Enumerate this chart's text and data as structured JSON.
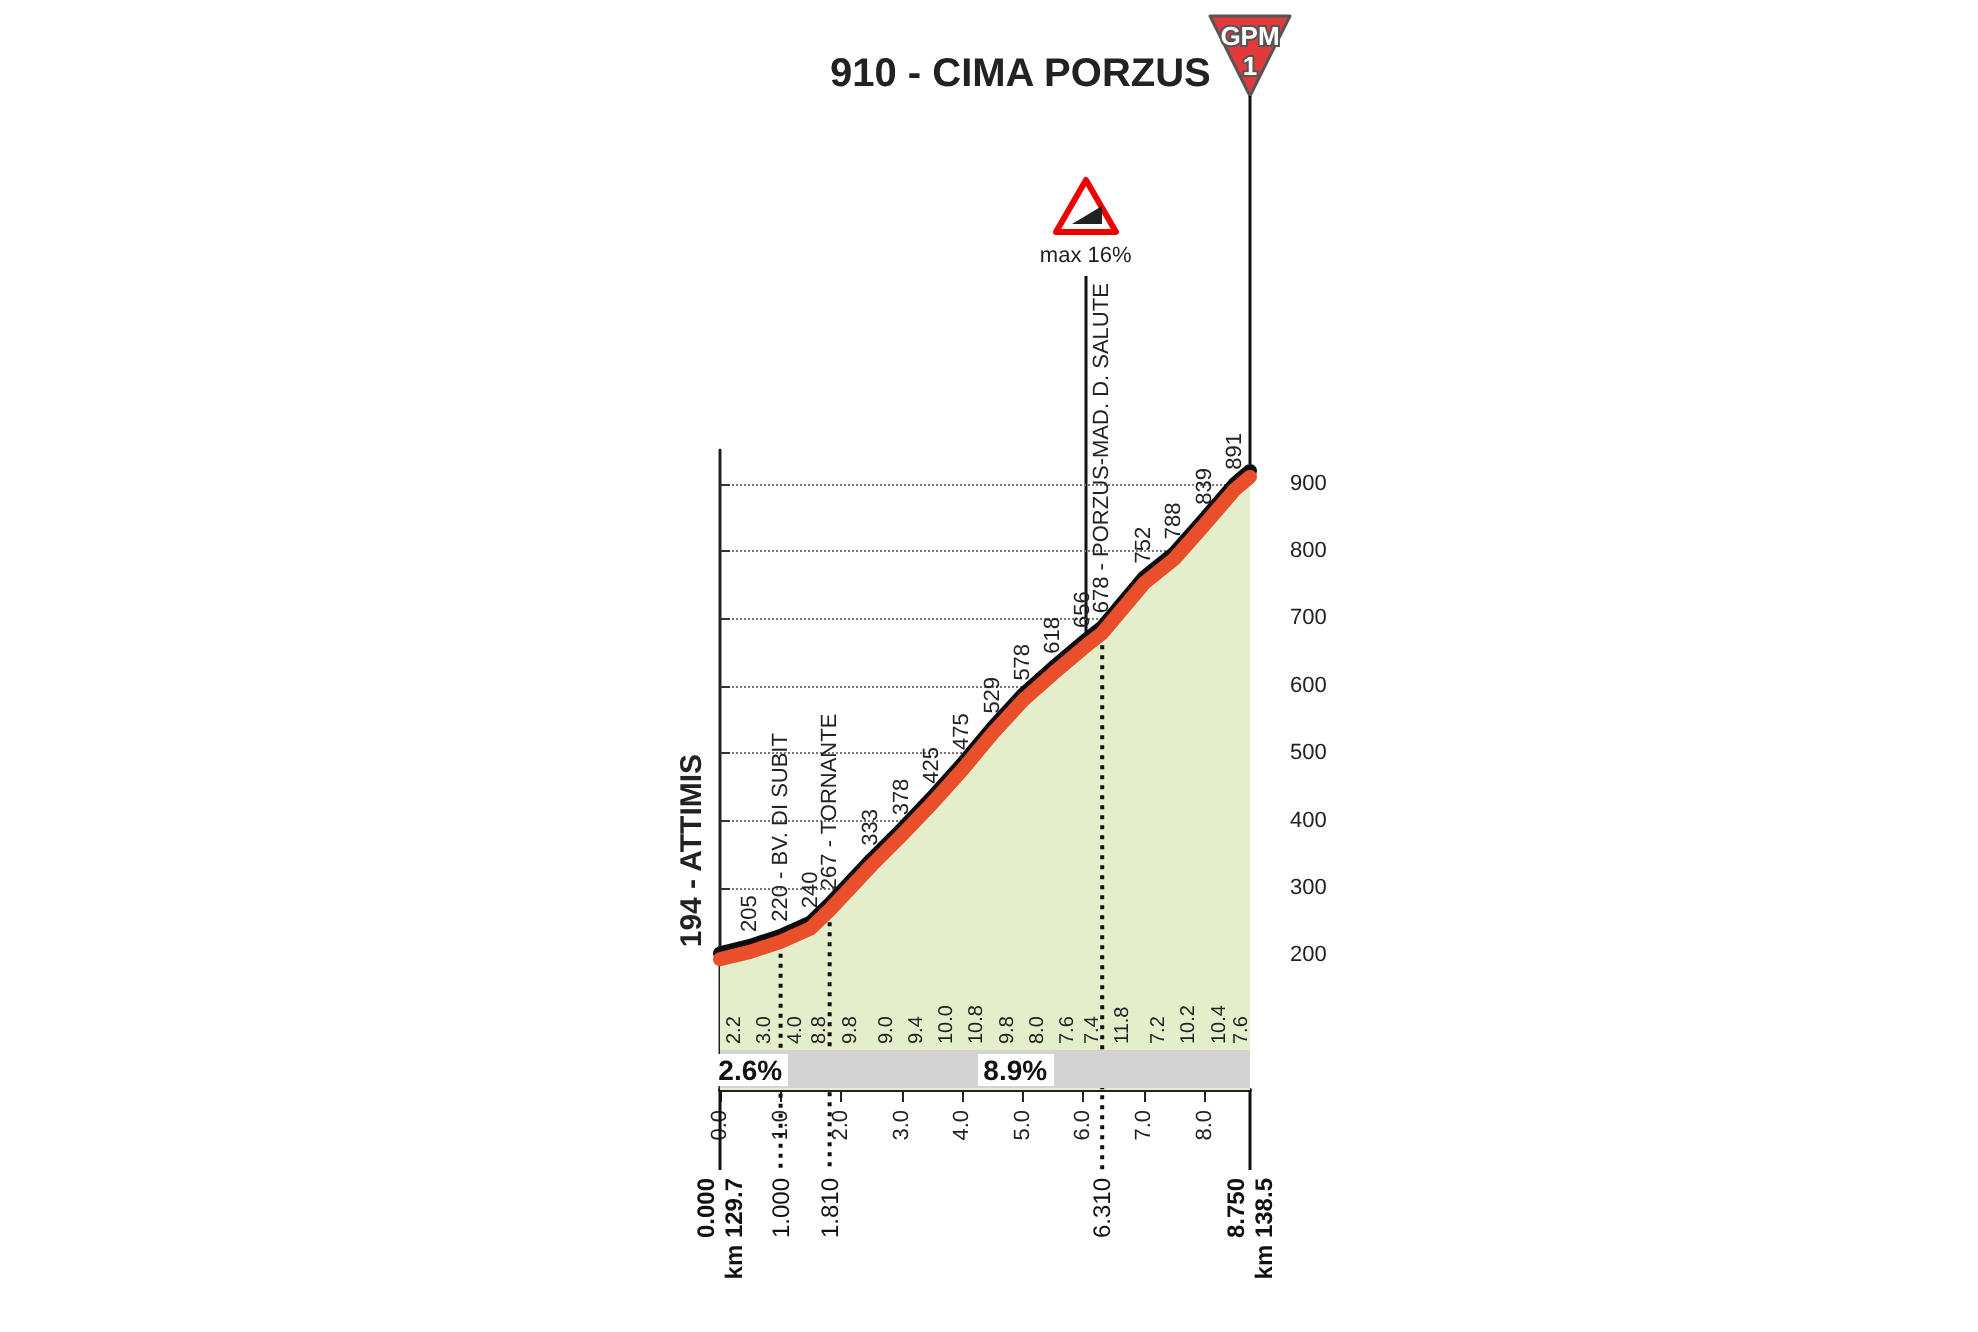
{
  "chart_data": {
    "type": "area",
    "title": "910 - CIMA PORZUS",
    "x": [
      0,
      0.5,
      1,
      1.5,
      1.81,
      2.5,
      3,
      3.5,
      4,
      4.5,
      5,
      5.5,
      6,
      6.31,
      7,
      7.5,
      8,
      8.5,
      8.75
    ],
    "values": [
      194,
      205,
      220,
      240,
      267,
      333,
      378,
      425,
      475,
      529,
      578,
      618,
      656,
      678,
      752,
      788,
      839,
      891,
      910
    ],
    "value_labels": [
      "194 - ATTIMIS",
      "205",
      "220 - BV. DI SUBIT",
      "240",
      "267 - TORNANTE",
      "333",
      "378",
      "425",
      "475",
      "529",
      "578",
      "618",
      "656",
      "678 - PORZUS-MAD. D. SALUTE",
      "752",
      "788",
      "839",
      "891",
      null
    ],
    "color": "#e8502a",
    "xlim": [
      0,
      8.75
    ],
    "xticks": [
      {
        "value": 0,
        "label": "0.0"
      },
      {
        "value": 1,
        "label": "1.0"
      },
      {
        "value": 2,
        "label": "2.0"
      },
      {
        "value": 3,
        "label": "3.0"
      },
      {
        "value": 4,
        "label": "4.0"
      },
      {
        "value": 5,
        "label": "5.0"
      },
      {
        "value": 6,
        "label": "6.0"
      },
      {
        "value": 7,
        "label": "7.0"
      },
      {
        "value": 8,
        "label": "8.0"
      }
    ],
    "ylim": [
      0,
      950
    ],
    "yticks": [
      200,
      300,
      400,
      500,
      600,
      700,
      800,
      900
    ],
    "grid": "y",
    "ref_lines": [
      {
        "axis": "x",
        "value": 0,
        "label": "0.000\nkm 129.7",
        "line_style": "solid"
      },
      {
        "axis": "x",
        "value": 1,
        "label": "1.000",
        "line_style": "dotted"
      },
      {
        "axis": "x",
        "value": 1.81,
        "label": "1.810",
        "line_style": "dotted"
      },
      {
        "axis": "x",
        "value": 6.31,
        "label": "6.310",
        "line_style": "dotted"
      },
      {
        "axis": "x",
        "value": 8.75,
        "label": "8.750\nkm 138.5",
        "line_style": "solid"
      }
    ],
    "annotations": [
      "2.2",
      "3.0",
      "4.0",
      "8.8",
      "9.8",
      "9.0",
      "9.4",
      "10.0",
      "10.8",
      "9.8",
      "8.0",
      "7.6",
      "7.4",
      "11.8",
      "7.2",
      "10.2",
      "10.4",
      "7.6",
      "2.6%",
      "8.9%",
      "max 16%",
      "GPM",
      "1"
    ]
  }
}
